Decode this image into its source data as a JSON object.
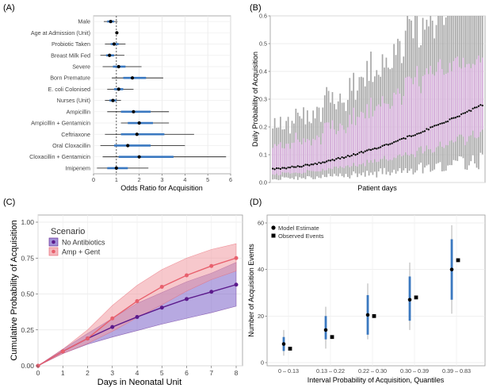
{
  "panels": {
    "a": "(A)",
    "b": "(B)",
    "c": "(C)",
    "d": "(D)"
  },
  "colors": {
    "blue": "#3a78c0",
    "purple": "#5c1a8c",
    "purple_band": "#7b62c8",
    "red": "#e8606d",
    "red_band": "#f09aa3",
    "pink_band": "#ddb0e2",
    "gray": "#a8a8a8"
  },
  "chart_data": [
    {
      "type": "forest",
      "panel": "(A)",
      "xlabel": "Odds Ratio for Acquisition",
      "xlim": [
        0,
        6
      ],
      "xticks": [
        0,
        1,
        2,
        3,
        4,
        5,
        6
      ],
      "reference_line": 1,
      "rows": [
        {
          "label": "Male",
          "est": 0.75,
          "lo50": 0.6,
          "hi50": 0.9,
          "lo95": 0.45,
          "hi95": 1.05
        },
        {
          "label": "Age at Admission (Unit)",
          "est": 1.02,
          "lo50": 1.0,
          "hi50": 1.04,
          "lo95": 0.98,
          "hi95": 1.06
        },
        {
          "label": "Probiotic Taken",
          "est": 0.9,
          "lo50": 0.75,
          "hi50": 1.1,
          "lo95": 0.5,
          "hi95": 1.4
        },
        {
          "label": "Breast Milk Fed",
          "est": 0.7,
          "lo50": 0.55,
          "hi50": 0.9,
          "lo95": 0.3,
          "hi95": 1.35
        },
        {
          "label": "Severe",
          "est": 1.1,
          "lo50": 0.85,
          "hi50": 1.4,
          "lo95": 0.4,
          "hi95": 2.1
        },
        {
          "label": "Born Premature",
          "est": 1.7,
          "lo50": 1.3,
          "hi50": 2.3,
          "lo95": 0.8,
          "hi95": 3.05
        },
        {
          "label": "E. coli Colonised",
          "est": 1.1,
          "lo50": 0.9,
          "hi50": 1.3,
          "lo95": 0.6,
          "hi95": 1.75
        },
        {
          "label": "Nurses (Unit)",
          "est": 0.85,
          "lo50": 0.7,
          "hi50": 1.0,
          "lo95": 0.5,
          "hi95": 1.2
        },
        {
          "label": "Ampicillin",
          "est": 1.75,
          "lo50": 1.2,
          "hi50": 2.5,
          "lo95": 0.6,
          "hi95": 3.3
        },
        {
          "label": "Ampicillin + Gentamicin",
          "est": 2.0,
          "lo50": 1.5,
          "hi50": 2.6,
          "lo95": 1.2,
          "hi95": 3.3
        },
        {
          "label": "Ceftriaxone",
          "est": 1.9,
          "lo50": 1.2,
          "hi50": 3.1,
          "lo95": 0.5,
          "hi95": 4.4
        },
        {
          "label": "Oral Cloxacillin",
          "est": 1.5,
          "lo50": 0.9,
          "hi50": 2.5,
          "lo95": 0.3,
          "hi95": 4.0
        },
        {
          "label": "Cloxacillin + Gentamicin",
          "est": 2.0,
          "lo50": 1.1,
          "hi50": 3.5,
          "lo95": 0.4,
          "hi95": 5.8
        },
        {
          "label": "Imipenem",
          "est": 1.0,
          "lo50": 0.6,
          "hi50": 1.5,
          "lo95": 0.15,
          "hi95": 2.4
        }
      ]
    },
    {
      "type": "ranked-interval",
      "panel": "(B)",
      "xlabel": "Patient days",
      "ylabel": "Daily Probability of Acquisition",
      "ylim": [
        0,
        0.6
      ],
      "yticks": [
        "0.0",
        "0.1",
        "0.2",
        "0.3",
        "0.4",
        "0.5",
        "0.6"
      ],
      "n_days": 110,
      "median_start": 0.05,
      "median_end": 0.28
    },
    {
      "type": "line",
      "panel": "(C)",
      "xlabel": "Days in Neonatal Unit",
      "ylabel": "Cumulative Probability of Acquisition",
      "x": [
        0,
        1,
        2,
        3,
        4,
        5,
        6,
        7,
        8
      ],
      "xlim": [
        0,
        8
      ],
      "ylim": [
        0,
        1
      ],
      "yticks": [
        "0.00",
        "0.25",
        "0.50",
        "0.75",
        "1.00"
      ],
      "legend_title": "Scenario",
      "series": [
        {
          "name": "No Antibiotics",
          "color": "#5c1a8c",
          "band": "#7b62c8",
          "values": [
            0,
            0.1,
            0.19,
            0.27,
            0.34,
            0.405,
            0.465,
            0.515,
            0.565
          ],
          "lower": [
            0,
            0.085,
            0.15,
            0.2,
            0.245,
            0.29,
            0.33,
            0.37,
            0.415
          ],
          "upper": [
            0,
            0.115,
            0.225,
            0.33,
            0.435,
            0.51,
            0.585,
            0.645,
            0.72
          ]
        },
        {
          "name": "Amp + Gent",
          "color": "#e8606d",
          "band": "#f09aa3",
          "values": [
            0,
            0.1,
            0.19,
            0.33,
            0.45,
            0.55,
            0.63,
            0.695,
            0.75
          ],
          "lower": [
            0,
            0.085,
            0.155,
            0.24,
            0.335,
            0.425,
            0.52,
            0.6,
            0.66
          ],
          "upper": [
            0,
            0.115,
            0.25,
            0.42,
            0.56,
            0.67,
            0.75,
            0.81,
            0.85
          ]
        }
      ]
    },
    {
      "type": "interval-points",
      "panel": "(D)",
      "xlabel": "Interval Probability of Acquisition, Quantiles",
      "ylabel": "Number of Acquisition Events",
      "categories": [
        "0 – 0.13",
        "0.13 – 0.22",
        "0.22 – 0.30",
        "0.30 – 0.39",
        "0.39 – 0.83"
      ],
      "ylim": [
        0,
        60
      ],
      "yticks": [
        "0",
        "20",
        "40",
        "60"
      ],
      "legend": [
        "Model Estimate",
        "Observed Events"
      ],
      "model_estimate": [
        8,
        14,
        20.5,
        27,
        40
      ],
      "lower50": [
        5,
        10,
        12,
        18,
        27
      ],
      "upper50": [
        11,
        20,
        29,
        37,
        53
      ],
      "lower95": [
        3,
        6,
        10,
        14,
        21
      ],
      "upper95": [
        14,
        24,
        34,
        43,
        59
      ],
      "observed": [
        6,
        11,
        20,
        28,
        44
      ]
    }
  ]
}
